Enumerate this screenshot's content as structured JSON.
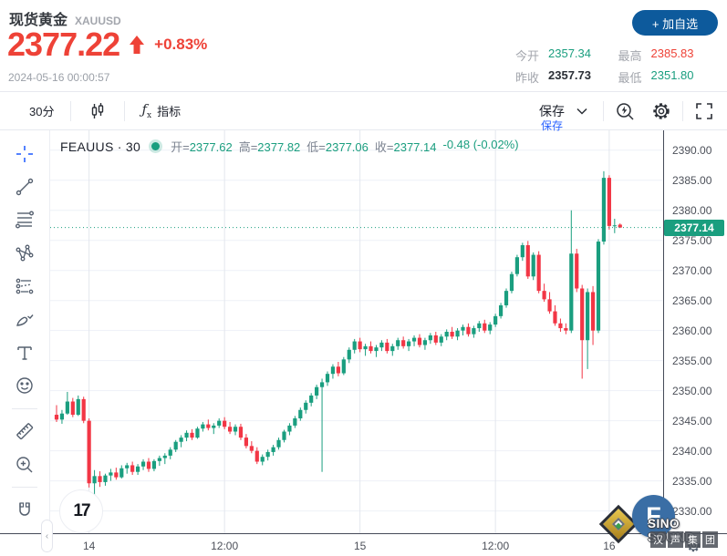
{
  "header": {
    "title": "现货黄金",
    "symbol_code": "XAUUSD",
    "price": "2377.22",
    "change_pct": "+0.83%",
    "datetime": "2024-05-16 00:00:57",
    "add_watchlist_label": "+ 加自选",
    "stats": {
      "open_label": "今开",
      "open": "2357.34",
      "high_label": "最高",
      "high": "2385.83",
      "prev_close_label": "昨收",
      "prev_close": "2357.73",
      "low_label": "最低",
      "low": "2351.80"
    },
    "colors": {
      "price_red": "#ee4237",
      "value_green": "#1a9e7f",
      "button_blue": "#0d5a9c"
    }
  },
  "toolbar": {
    "interval": "30分",
    "indicators_label": "指标",
    "save_label": "保存",
    "save_tooltip": "保存"
  },
  "legend": {
    "symbol": "FEAUUS · 30",
    "open_label": "开=",
    "open": "2377.62",
    "high_label": "高=",
    "high": "2377.82",
    "low_label": "低=",
    "low": "2377.06",
    "close_label": "收=",
    "close": "2377.14",
    "change": "-0.48 (-0.02%)"
  },
  "watermarks": {
    "tv_glyph": "17",
    "brand": "SINO SOUND",
    "brand_cn": [
      "汉",
      "声",
      "集",
      "团"
    ],
    "logo_letter": "F"
  },
  "chart_data": {
    "type": "candlestick",
    "symbol": "XAUUSD",
    "interval": "30m",
    "title": "FEAUUS · 30",
    "grid": true,
    "colors": {
      "up": "#1a9e7f",
      "down": "#f23645",
      "grid": "#eef1f7",
      "session_grid": "#e3e6ee"
    },
    "y_axis": {
      "min": 2326.3,
      "max": 2393.3,
      "tick_step": 5,
      "ticks": [
        2390,
        2385,
        2380,
        2375,
        2370,
        2365,
        2360,
        2355,
        2350,
        2345,
        2340,
        2335,
        2330
      ],
      "last_price": 2377.14,
      "last_price_label": "2377.14"
    },
    "x_axis": {
      "ticks": [
        {
          "label": "14",
          "i": 6
        },
        {
          "label": "12:00",
          "i": 31
        },
        {
          "label": "15",
          "i": 56
        },
        {
          "label": "12:00",
          "i": 81
        },
        {
          "label": "16",
          "i": 102
        }
      ]
    },
    "candles": [
      [
        2346.0,
        2347.6,
        2344.8,
        2345.2
      ],
      [
        2345.2,
        2346.8,
        2344.5,
        2346.2
      ],
      [
        2346.2,
        2349.8,
        2346.0,
        2348.2
      ],
      [
        2348.2,
        2348.8,
        2345.6,
        2346.0
      ],
      [
        2346.0,
        2349.2,
        2345.8,
        2348.6
      ],
      [
        2348.6,
        2349.0,
        2344.6,
        2345.0
      ],
      [
        2345.0,
        2345.4,
        2333.9,
        2334.6
      ],
      [
        2334.6,
        2336.8,
        2331.2,
        2335.8
      ],
      [
        2335.8,
        2336.6,
        2334.0,
        2334.8
      ],
      [
        2334.8,
        2336.2,
        2334.2,
        2335.9
      ],
      [
        2335.9,
        2337.0,
        2335.0,
        2336.4
      ],
      [
        2336.4,
        2337.2,
        2335.2,
        2335.6
      ],
      [
        2335.6,
        2337.6,
        2335.4,
        2337.1
      ],
      [
        2337.1,
        2338.0,
        2336.2,
        2337.6
      ],
      [
        2337.6,
        2338.2,
        2336.0,
        2336.5
      ],
      [
        2336.5,
        2337.8,
        2336.0,
        2337.4
      ],
      [
        2337.4,
        2338.6,
        2336.8,
        2338.2
      ],
      [
        2338.2,
        2338.8,
        2336.5,
        2337.0
      ],
      [
        2337.0,
        2338.6,
        2336.6,
        2338.3
      ],
      [
        2338.3,
        2339.2,
        2337.5,
        2338.8
      ],
      [
        2338.8,
        2339.6,
        2337.8,
        2339.2
      ],
      [
        2339.2,
        2340.6,
        2338.6,
        2340.2
      ],
      [
        2340.2,
        2341.8,
        2339.8,
        2341.5
      ],
      [
        2341.5,
        2342.6,
        2340.6,
        2342.2
      ],
      [
        2342.2,
        2343.4,
        2341.6,
        2343.0
      ],
      [
        2343.0,
        2343.6,
        2341.8,
        2342.2
      ],
      [
        2342.2,
        2344.0,
        2342.0,
        2343.7
      ],
      [
        2343.7,
        2344.8,
        2343.2,
        2344.4
      ],
      [
        2344.4,
        2345.2,
        2343.4,
        2343.8
      ],
      [
        2343.8,
        2344.6,
        2342.8,
        2344.2
      ],
      [
        2344.2,
        2345.4,
        2343.8,
        2345.0
      ],
      [
        2345.0,
        2345.6,
        2343.6,
        2344.0
      ],
      [
        2344.0,
        2344.8,
        2342.8,
        2343.2
      ],
      [
        2343.2,
        2344.4,
        2342.6,
        2344.0
      ],
      [
        2344.0,
        2344.5,
        2341.8,
        2342.2
      ],
      [
        2342.2,
        2342.8,
        2340.4,
        2340.8
      ],
      [
        2340.8,
        2341.6,
        2339.6,
        2340.0
      ],
      [
        2340.0,
        2340.6,
        2337.8,
        2338.2
      ],
      [
        2338.2,
        2339.4,
        2337.6,
        2339.0
      ],
      [
        2339.0,
        2340.2,
        2338.4,
        2339.8
      ],
      [
        2339.8,
        2341.0,
        2339.2,
        2340.6
      ],
      [
        2340.6,
        2342.2,
        2340.2,
        2341.8
      ],
      [
        2341.8,
        2343.5,
        2341.4,
        2343.2
      ],
      [
        2343.2,
        2344.6,
        2342.6,
        2344.2
      ],
      [
        2344.2,
        2345.8,
        2343.8,
        2345.4
      ],
      [
        2345.4,
        2347.2,
        2345.0,
        2346.8
      ],
      [
        2346.8,
        2348.4,
        2346.2,
        2348.0
      ],
      [
        2348.0,
        2349.6,
        2347.4,
        2349.2
      ],
      [
        2349.2,
        2351.0,
        2348.6,
        2350.6
      ],
      [
        2350.6,
        2352.0,
        2336.5,
        2351.4
      ],
      [
        2351.4,
        2353.2,
        2350.8,
        2352.8
      ],
      [
        2352.8,
        2354.4,
        2352.0,
        2354.0
      ],
      [
        2354.0,
        2354.8,
        2352.4,
        2352.9
      ],
      [
        2352.9,
        2355.6,
        2352.6,
        2355.2
      ],
      [
        2355.2,
        2357.2,
        2354.6,
        2356.8
      ],
      [
        2356.8,
        2358.6,
        2356.2,
        2358.2
      ],
      [
        2358.2,
        2358.8,
        2356.4,
        2356.9
      ],
      [
        2356.9,
        2357.8,
        2355.8,
        2357.4
      ],
      [
        2357.4,
        2358.2,
        2356.2,
        2356.6
      ],
      [
        2356.6,
        2357.6,
        2355.6,
        2357.2
      ],
      [
        2357.2,
        2358.4,
        2356.6,
        2358.0
      ],
      [
        2358.0,
        2358.6,
        2356.2,
        2356.6
      ],
      [
        2356.6,
        2357.8,
        2355.8,
        2357.4
      ],
      [
        2357.4,
        2358.8,
        2356.8,
        2358.4
      ],
      [
        2358.4,
        2359.0,
        2357.0,
        2357.4
      ],
      [
        2357.4,
        2358.6,
        2356.6,
        2358.2
      ],
      [
        2358.2,
        2359.2,
        2357.4,
        2358.8
      ],
      [
        2358.8,
        2359.4,
        2357.2,
        2357.6
      ],
      [
        2357.6,
        2358.8,
        2356.8,
        2358.4
      ],
      [
        2358.4,
        2359.6,
        2357.8,
        2359.2
      ],
      [
        2359.2,
        2359.8,
        2357.6,
        2358.0
      ],
      [
        2358.0,
        2359.4,
        2357.4,
        2359.0
      ],
      [
        2359.0,
        2360.2,
        2358.4,
        2359.8
      ],
      [
        2359.8,
        2360.6,
        2358.6,
        2359.0
      ],
      [
        2359.0,
        2360.4,
        2358.4,
        2360.0
      ],
      [
        2360.0,
        2361.0,
        2359.2,
        2360.6
      ],
      [
        2360.6,
        2361.2,
        2359.0,
        2359.4
      ],
      [
        2359.4,
        2360.8,
        2358.8,
        2360.4
      ],
      [
        2360.4,
        2361.6,
        2359.8,
        2361.2
      ],
      [
        2361.2,
        2361.8,
        2359.6,
        2360.0
      ],
      [
        2360.0,
        2361.4,
        2359.4,
        2361.0
      ],
      [
        2361.0,
        2362.8,
        2360.6,
        2362.4
      ],
      [
        2362.4,
        2364.6,
        2362.0,
        2364.2
      ],
      [
        2364.2,
        2367.0,
        2363.8,
        2366.6
      ],
      [
        2366.6,
        2369.8,
        2366.2,
        2369.4
      ],
      [
        2369.4,
        2372.6,
        2369.0,
        2372.2
      ],
      [
        2372.2,
        2374.6,
        2371.6,
        2374.2
      ],
      [
        2374.2,
        2374.9,
        2368.6,
        2369.0
      ],
      [
        2369.0,
        2373.0,
        2368.4,
        2372.6
      ],
      [
        2372.6,
        2373.2,
        2366.2,
        2366.6
      ],
      [
        2366.6,
        2367.8,
        2364.8,
        2365.2
      ],
      [
        2365.2,
        2366.4,
        2362.8,
        2363.2
      ],
      [
        2363.2,
        2364.2,
        2360.8,
        2361.2
      ],
      [
        2361.2,
        2362.0,
        2359.8,
        2360.4
      ],
      [
        2360.4,
        2361.2,
        2359.4,
        2360.0
      ],
      [
        2360.0,
        2380.0,
        2359.6,
        2372.8
      ],
      [
        2372.8,
        2373.6,
        2366.4,
        2367.0
      ],
      [
        2367.0,
        2367.6,
        2352.0,
        2358.4
      ],
      [
        2358.4,
        2367.0,
        2353.6,
        2366.4
      ],
      [
        2366.4,
        2367.4,
        2357.6,
        2360.0
      ],
      [
        2360.0,
        2375.2,
        2359.6,
        2374.8
      ],
      [
        2374.8,
        2386.5,
        2374.3,
        2385.4
      ],
      [
        2385.4,
        2385.83,
        2376.8,
        2377.4
      ],
      [
        2377.4,
        2378.6,
        2376.2,
        2377.5
      ],
      [
        2377.62,
        2377.82,
        2377.06,
        2377.14
      ]
    ]
  }
}
